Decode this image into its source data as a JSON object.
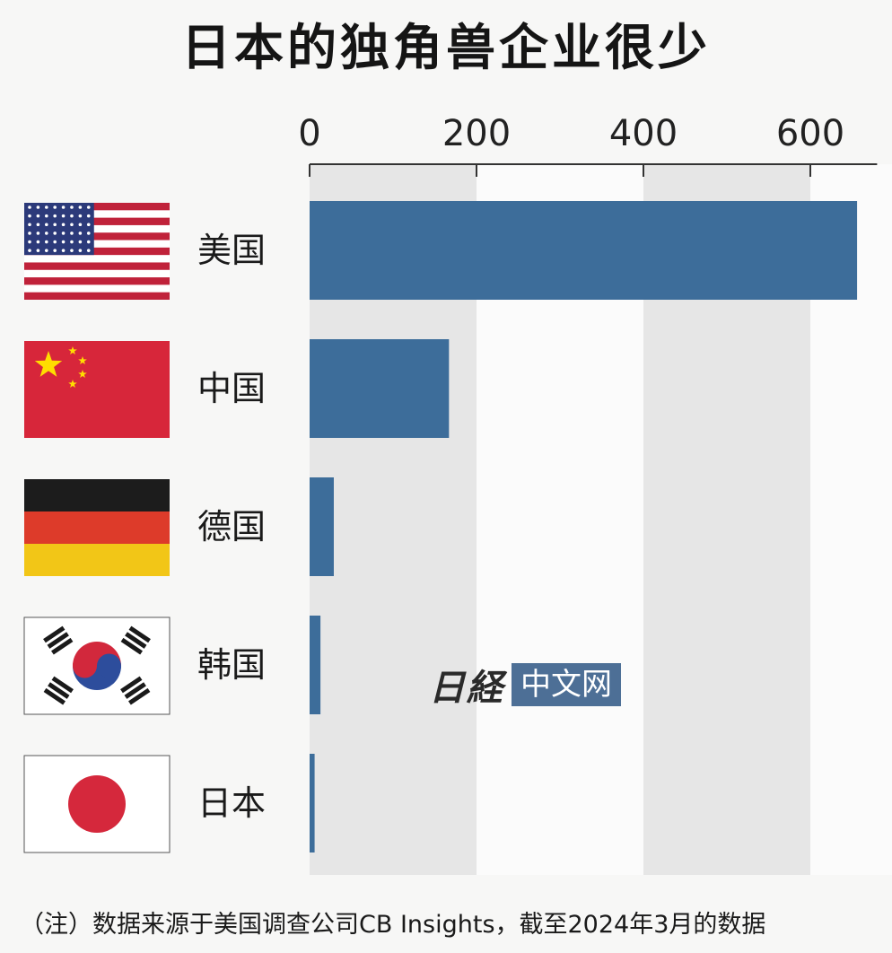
{
  "chart_data": {
    "type": "bar",
    "orientation": "horizontal",
    "title": "日本的独角兽企业很少",
    "categories": [
      "美国",
      "中国",
      "德国",
      "韩国",
      "日本"
    ],
    "values": [
      656,
      167,
      29,
      13,
      6
    ],
    "x_ticks": [
      0,
      200,
      400,
      600
    ],
    "xlim": [
      0,
      680
    ],
    "grid": "alternating bands",
    "bar_color": "#3d6d9a",
    "flags": [
      "us-flag-icon",
      "china-flag-icon",
      "germany-flag-icon",
      "south-korea-flag-icon",
      "japan-flag-icon"
    ]
  },
  "note": "（注）数据来源于美国调查公司CB Insights，截至2024年3月的数据",
  "watermark": {
    "logo": "日経",
    "text": "中文网"
  }
}
